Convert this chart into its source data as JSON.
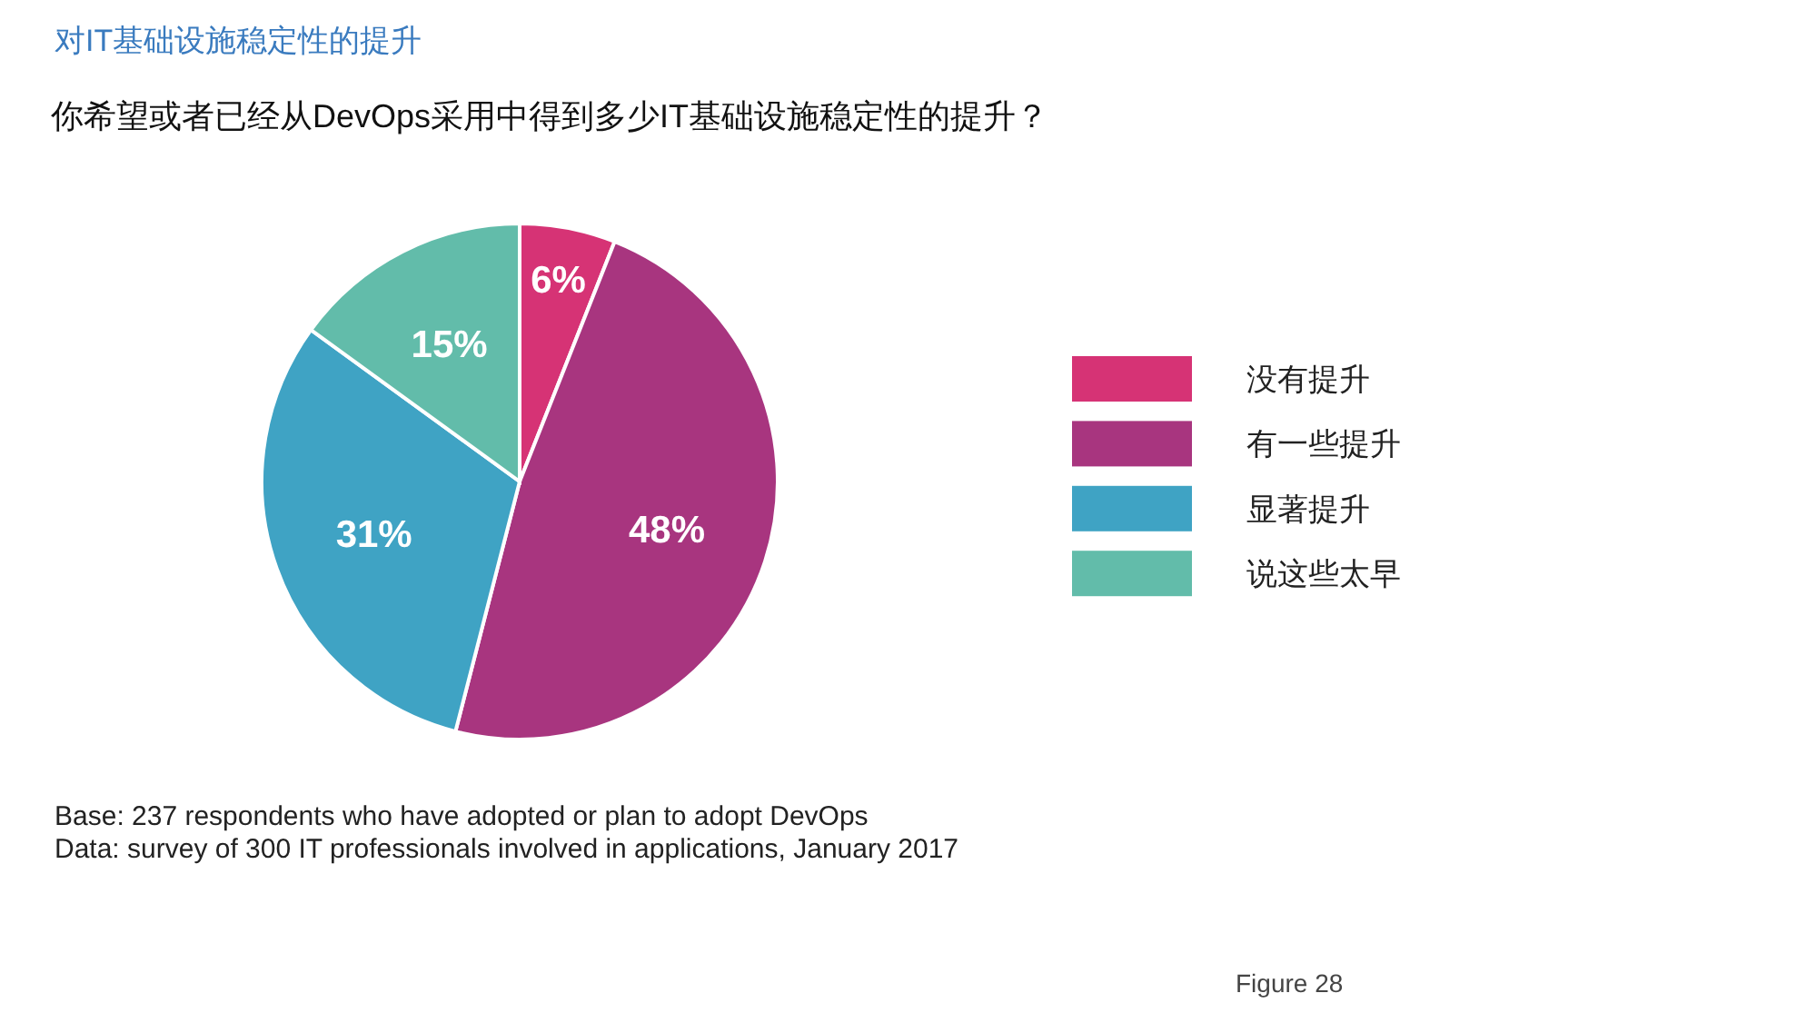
{
  "chart_data": {
    "type": "pie",
    "title": "对IT基础设施稳定性的提升",
    "subtitle": "你希望或者已经从DevOps采用中得到多少IT基础设施稳定性的提升？",
    "categories": [
      "没有提升",
      "有一些提升",
      "显著提升",
      "说这些太早"
    ],
    "values": [
      6,
      48,
      31,
      15
    ],
    "colors": [
      "#d63375",
      "#a8357f",
      "#3fa3c4",
      "#62bcaa"
    ],
    "value_labels": [
      "6%",
      "48%",
      "31%",
      "15%"
    ],
    "legend": "right",
    "annotations": [
      "Base: 237 respondents who have adopted or plan to adopt DevOps",
      "Data: survey of 300 IT professionals involved in applications, January 2017",
      "Figure 28"
    ]
  }
}
